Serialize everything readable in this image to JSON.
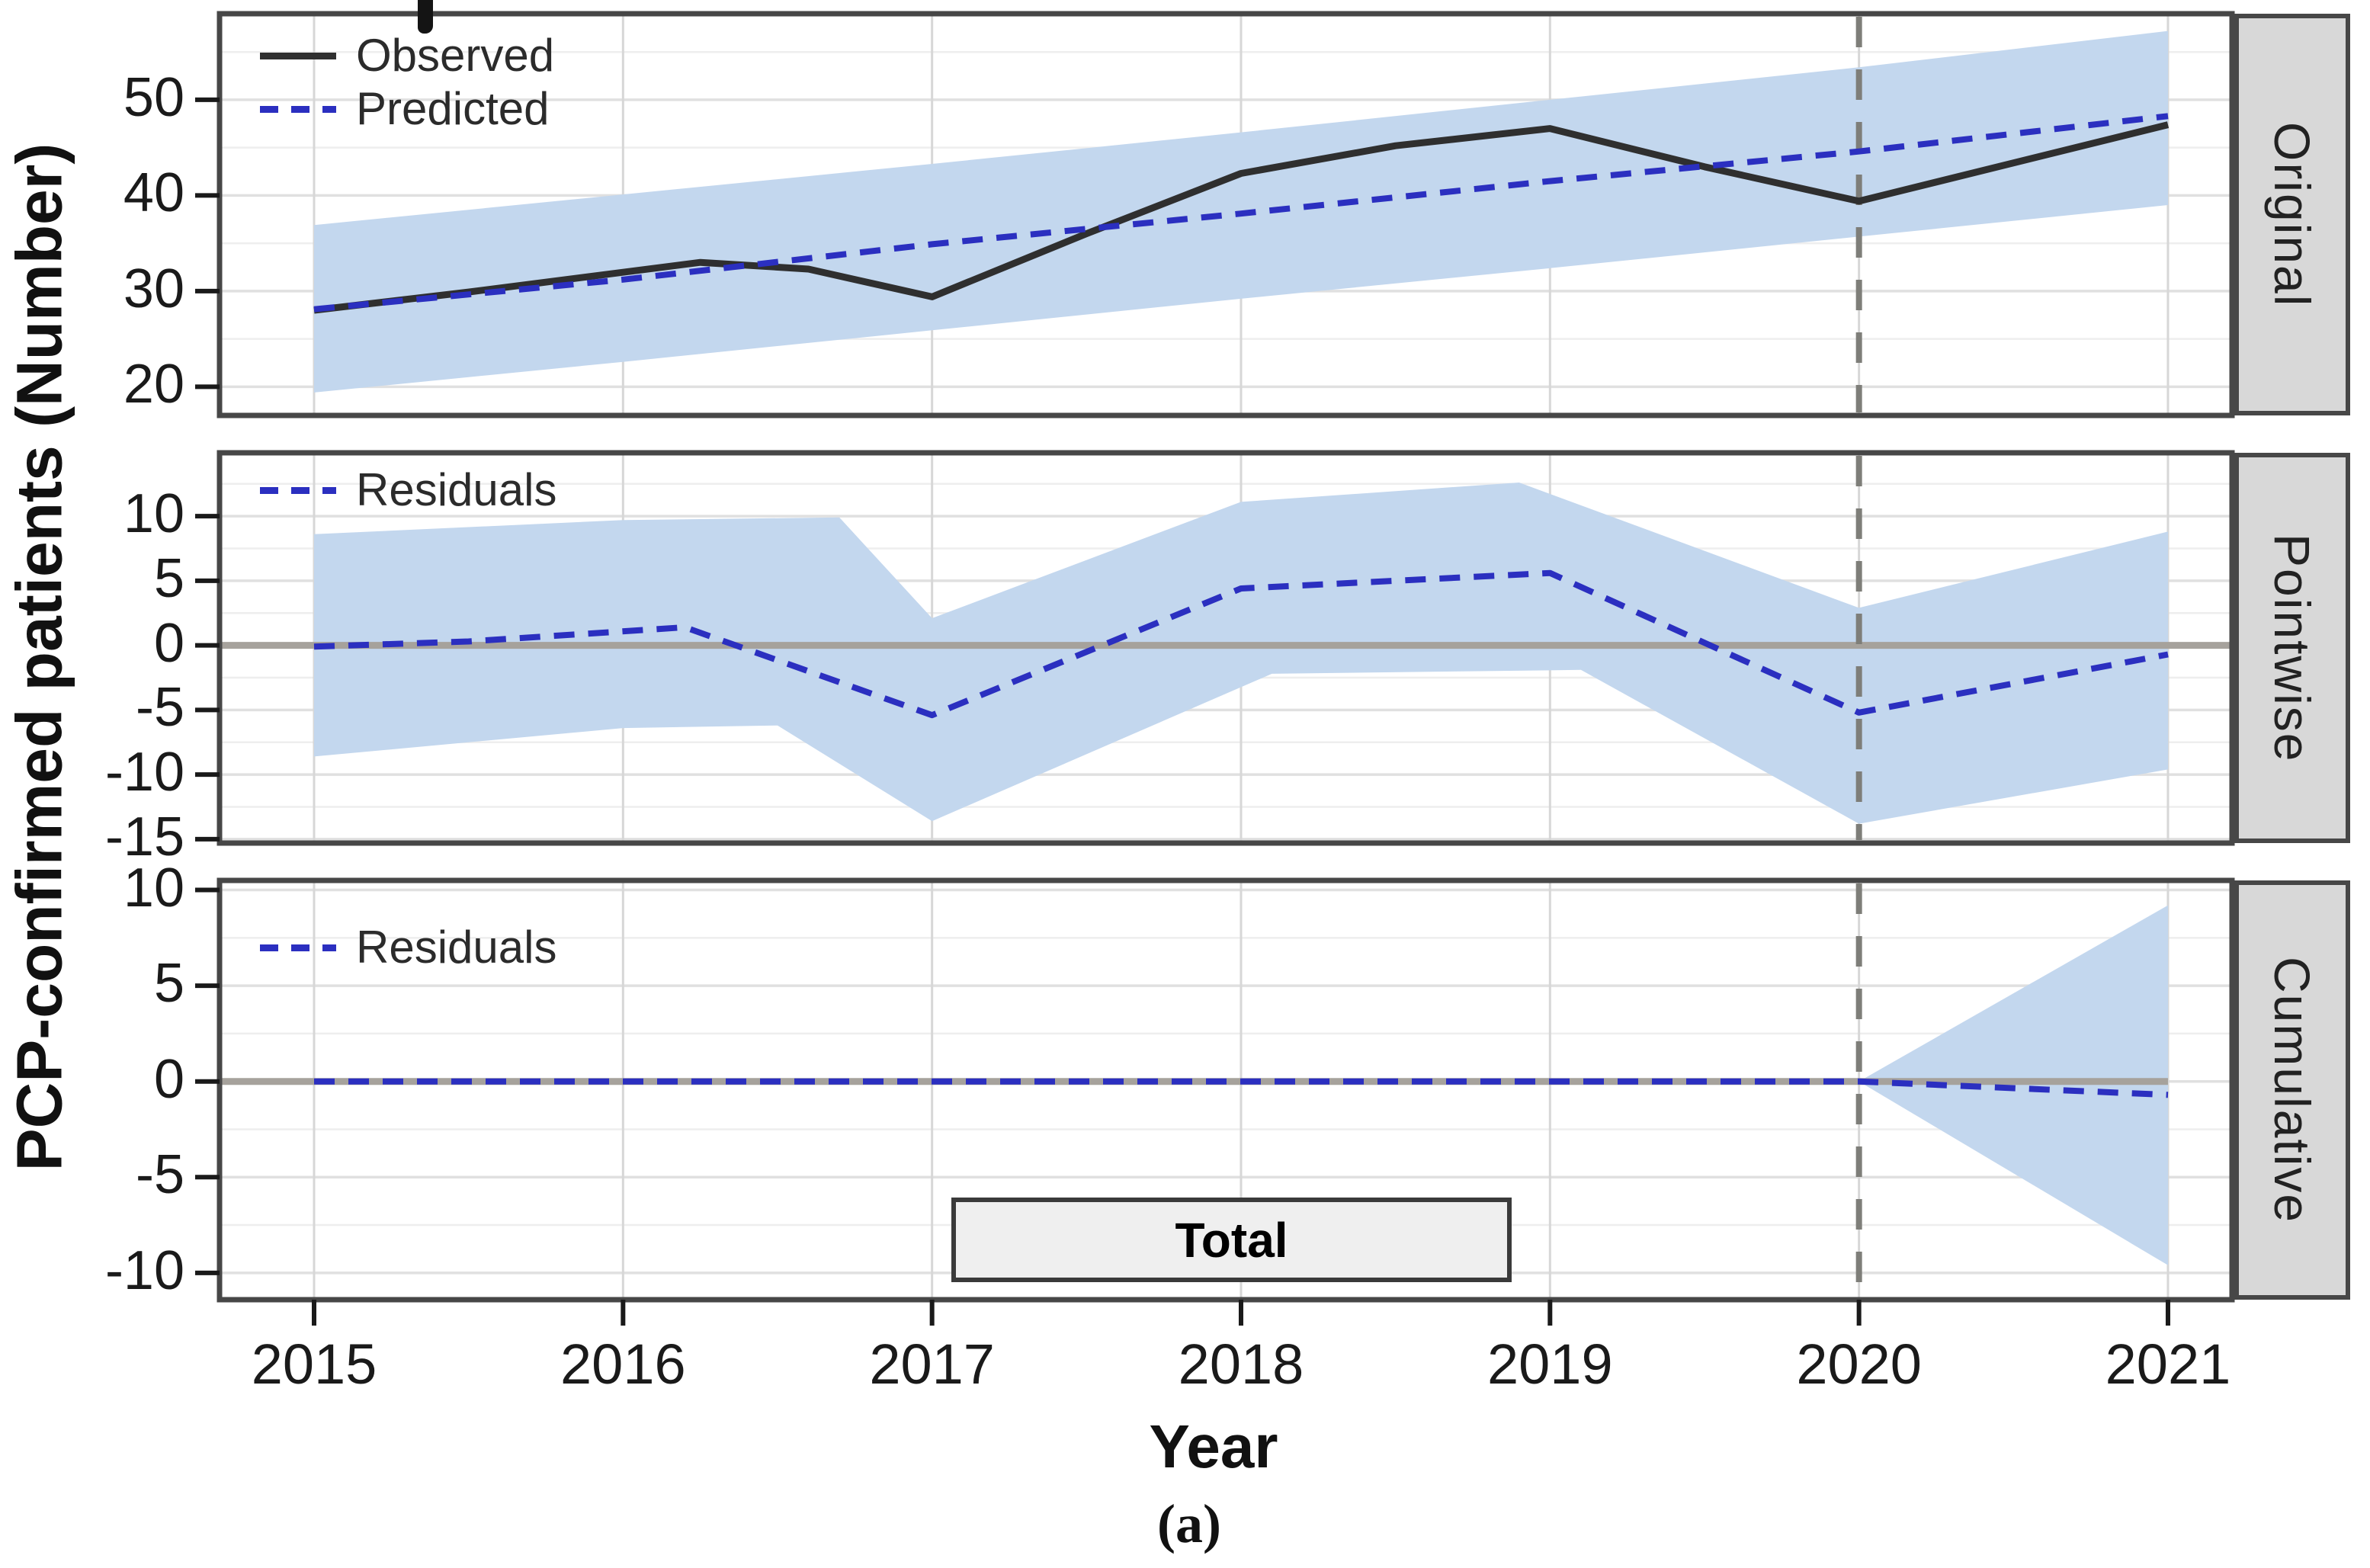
{
  "figure": {
    "y_axis_title": "PCP-confirmed patients (Number)",
    "x_axis_title": "Year",
    "caption_label": "(a)",
    "x_tick_labels": [
      "2015",
      "2016",
      "2017",
      "2018",
      "2019",
      "2020",
      "2021"
    ]
  },
  "colors": {
    "band": "#c3d7ee",
    "observed": "#2f2f2f",
    "predicted": "#2b2fc0",
    "zero_line": "#a6a29c",
    "intervention_line": "#7e7e79",
    "grid_major": "#e0e0e0",
    "grid_minor": "#eeeeee",
    "grid_vertical": "#d7d7d7",
    "panel_border": "#474747",
    "tick": "#1a1a1a"
  },
  "chart_data": [
    {
      "type": "line",
      "facet_label": "Original",
      "ylabel_shared": "PCP-confirmed patients (Number)",
      "legend": [
        {
          "label": "Observed",
          "style": "solid-black"
        },
        {
          "label": "Predicted",
          "style": "dashed-blue"
        }
      ],
      "x_years": [
        2015,
        2016,
        2017,
        2018,
        2019,
        2020,
        2021
      ],
      "series": [
        {
          "name": "Observed",
          "style": "solid-black",
          "x": [
            2015,
            2015.5,
            2016.25,
            2016.6,
            2017,
            2017.5,
            2018,
            2018.5,
            2019,
            2019.5,
            2020,
            2021
          ],
          "y": [
            28,
            29.9,
            33,
            32.3,
            29.4,
            36,
            42.3,
            45.2,
            47,
            43,
            39.4,
            47.4
          ]
        },
        {
          "name": "Predicted",
          "style": "dashed-blue",
          "x": [
            2015,
            2016,
            2017,
            2018,
            2019,
            2020,
            2021
          ],
          "y": [
            28.1,
            31.2,
            34.9,
            38.1,
            41.5,
            44.6,
            48.3
          ]
        }
      ],
      "band": {
        "upper": {
          "x": [
            2015,
            2016,
            2017,
            2018,
            2019,
            2020,
            2021
          ],
          "y": [
            36.9,
            40.1,
            43.3,
            46.6,
            50.0,
            53.4,
            57.2
          ]
        },
        "lower": {
          "x": [
            2015,
            2016,
            2017,
            2018,
            2019,
            2020,
            2021
          ],
          "y": [
            19.4,
            22.6,
            25.9,
            29.2,
            32.4,
            35.7,
            39.0
          ]
        }
      },
      "ylim": [
        17,
        59
      ],
      "yticks": [
        50,
        40,
        30,
        20
      ],
      "yticks_minor": [
        55,
        45,
        35,
        25
      ],
      "zero_line": false,
      "intervention_year": 2020
    },
    {
      "type": "line",
      "facet_label": "Pointwise",
      "legend": [
        {
          "label": "Residuals",
          "style": "dashed-blue"
        }
      ],
      "x_years": [
        2015,
        2016,
        2017,
        2018,
        2019,
        2020,
        2021
      ],
      "series": [
        {
          "name": "Residuals",
          "style": "dashed-blue",
          "x": [
            2015,
            2015.5,
            2016.2,
            2017,
            2018,
            2019,
            2020,
            2021
          ],
          "y": [
            -0.1,
            0.3,
            1.4,
            -5.4,
            4.4,
            5.6,
            -5.2,
            -0.7
          ]
        }
      ],
      "band": {
        "upper": {
          "x": [
            2015,
            2016,
            2016.7,
            2017,
            2018,
            2018.9,
            2020,
            2021
          ],
          "y": [
            8.6,
            9.7,
            9.9,
            2.1,
            11.1,
            12.6,
            2.9,
            8.8
          ]
        },
        "lower": {
          "x": [
            2015,
            2016,
            2016.5,
            2017,
            2018.1,
            2019.1,
            2020,
            2021
          ],
          "y": [
            -8.6,
            -6.4,
            -6.2,
            -13.6,
            -2.2,
            -1.9,
            -13.8,
            -9.6
          ]
        }
      },
      "ylim": [
        -15.3,
        14.9
      ],
      "yticks": [
        10,
        5,
        0,
        -5,
        -10,
        -15
      ],
      "yticks_minor": [
        12.5,
        7.5,
        2.5,
        -2.5,
        -7.5,
        -12.5
      ],
      "zero_line": true,
      "intervention_year": 2020
    },
    {
      "type": "line",
      "facet_label": "Cumulative",
      "legend": [
        {
          "label": "Residuals",
          "style": "dashed-blue"
        }
      ],
      "x_years": [
        2015,
        2016,
        2017,
        2018,
        2019,
        2020,
        2021
      ],
      "series": [
        {
          "name": "Residuals",
          "style": "dashed-blue",
          "x": [
            2015,
            2020,
            2021
          ],
          "y": [
            0,
            0,
            -0.7
          ]
        }
      ],
      "band": {
        "upper": {
          "x": [
            2020,
            2021
          ],
          "y": [
            0,
            9.2
          ]
        },
        "lower": {
          "x": [
            2020,
            2021
          ],
          "y": [
            0,
            -9.6
          ]
        }
      },
      "ylim": [
        -11.4,
        10.5
      ],
      "yticks": [
        10,
        5,
        0,
        -5,
        -10
      ],
      "yticks_minor": [
        7.5,
        2.5,
        -2.5,
        -7.5
      ],
      "zero_line": true,
      "zero_line_to": 2021,
      "intervention_year": 2020,
      "annotation_box": {
        "label": "Total"
      }
    }
  ]
}
